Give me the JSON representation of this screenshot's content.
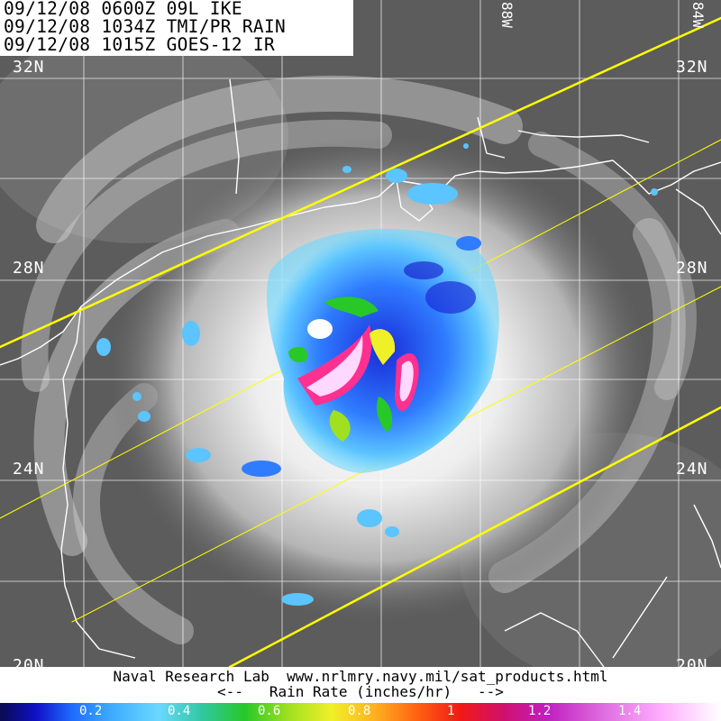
{
  "header": {
    "line1": "09/12/08 0600Z 09L IKE",
    "line2": "09/12/08 1034Z TMI/PR RAIN",
    "line3": "09/12/08 1015Z GOES-12 IR"
  },
  "grid": {
    "lat_labels": [
      {
        "id": "32n",
        "label": "32N"
      },
      {
        "id": "28n",
        "label": "28N"
      },
      {
        "id": "24n",
        "label": "24N"
      },
      {
        "id": "20n",
        "label": "20N"
      }
    ],
    "lon_labels": [
      {
        "id": "88w",
        "label": "88W"
      },
      {
        "id": "84w",
        "label": "84W"
      }
    ]
  },
  "footer": {
    "credit": "Naval Research Lab  www.nrlmry.navy.mil/sat_products.html",
    "scale_title": "<--   Rain Rate (inches/hr)   -->"
  },
  "colorbar": {
    "ticks": [
      "0.2",
      "0.4",
      "0.6",
      "0.8",
      "1",
      "1.2",
      "1.4"
    ],
    "stops": [
      "#0a0a50",
      "#1e6cff",
      "#6ad8ff",
      "#28c828",
      "#f0f028",
      "#ff6010",
      "#d01070",
      "#e070e0",
      "#ffffff"
    ]
  },
  "colors": {
    "coastline": "#ffffff",
    "swath_edge": "#ffff00",
    "rain_heavy": "#ff3090",
    "rain_core": "#ffd8ff"
  }
}
